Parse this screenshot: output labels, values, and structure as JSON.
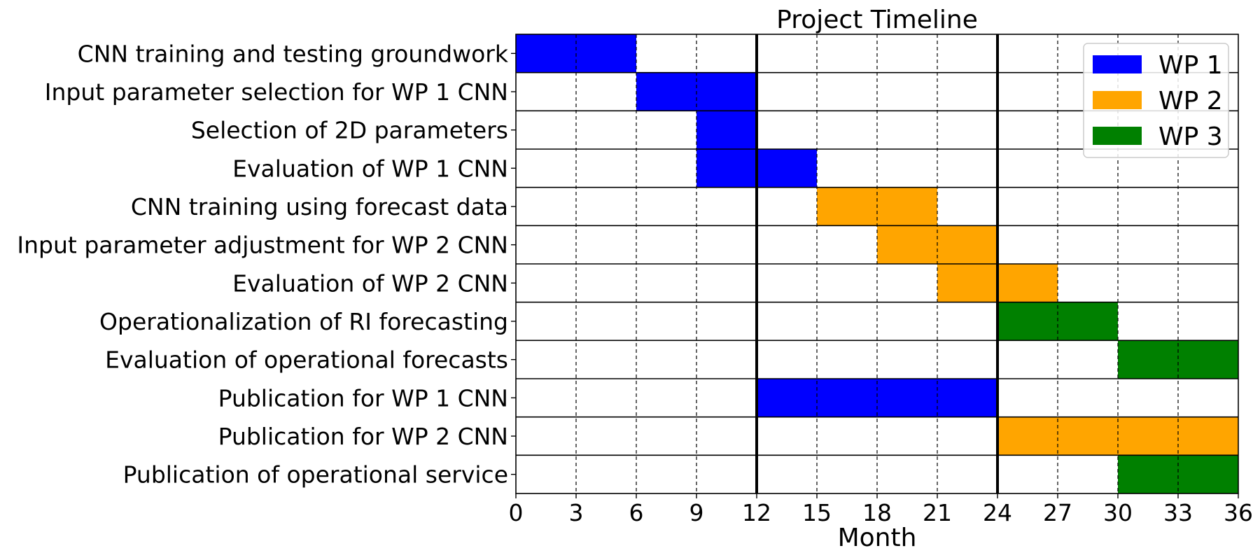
{
  "chart_data": {
    "type": "bar",
    "title": "Project Timeline",
    "xlabel": "Month",
    "ylabel": "",
    "xlim": [
      0,
      36
    ],
    "xticks": [
      0,
      3,
      6,
      9,
      12,
      15,
      18,
      21,
      24,
      27,
      30,
      33,
      36
    ],
    "year_boundaries": [
      12,
      24
    ],
    "grid": "dashed vertical lines every 3 months",
    "legend_position": "top-right",
    "series": [
      {
        "name": "WP 1",
        "color": "#0000ff"
      },
      {
        "name": "WP 2",
        "color": "#ffa500"
      },
      {
        "name": "WP 3",
        "color": "#008000"
      }
    ],
    "tasks": [
      {
        "label": "CNN training and testing groundwork",
        "start": 0,
        "end": 6,
        "wp": "WP 1"
      },
      {
        "label": "Input parameter selection for WP 1 CNN",
        "start": 6,
        "end": 12,
        "wp": "WP 1"
      },
      {
        "label": "Selection of 2D parameters",
        "start": 9,
        "end": 12,
        "wp": "WP 1"
      },
      {
        "label": "Evaluation of WP 1 CNN",
        "start": 9,
        "end": 15,
        "wp": "WP 1"
      },
      {
        "label": "CNN training using forecast data",
        "start": 15,
        "end": 21,
        "wp": "WP 2"
      },
      {
        "label": "Input parameter adjustment for WP 2 CNN",
        "start": 18,
        "end": 24,
        "wp": "WP 2"
      },
      {
        "label": "Evaluation of WP 2 CNN",
        "start": 21,
        "end": 27,
        "wp": "WP 2"
      },
      {
        "label": "Operationalization of RI forecasting",
        "start": 24,
        "end": 30,
        "wp": "WP 3"
      },
      {
        "label": "Evaluation of operational forecasts",
        "start": 30,
        "end": 36,
        "wp": "WP 3"
      },
      {
        "label": "Publication for WP 1 CNN",
        "start": 12,
        "end": 24,
        "wp": "WP 1"
      },
      {
        "label": "Publication for WP 2 CNN",
        "start": 24,
        "end": 36,
        "wp": "WP 2"
      },
      {
        "label": "Publication of operational service",
        "start": 30,
        "end": 36,
        "wp": "WP 3"
      }
    ]
  }
}
